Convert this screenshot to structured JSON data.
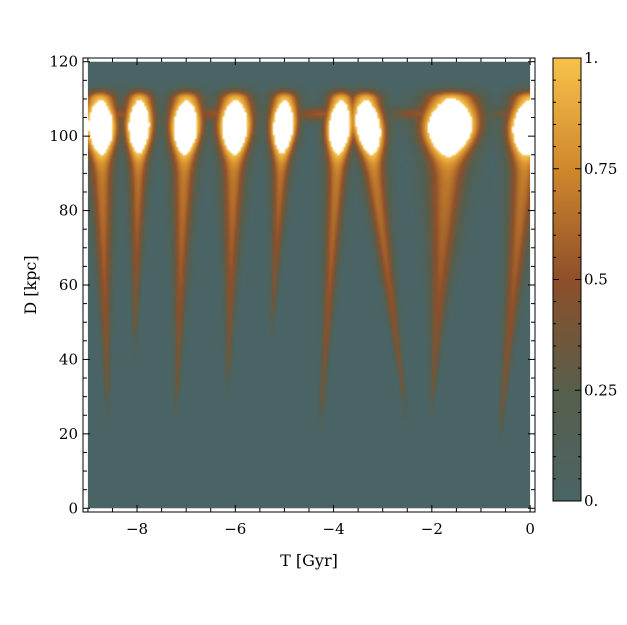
{
  "chart_data": {
    "type": "heatmap",
    "title": "",
    "xlabel": "T [Gyr]",
    "ylabel": "D [kpc]",
    "xlim": [
      -9.1,
      0.1
    ],
    "ylim": [
      -1,
      121
    ],
    "x_ticks": [
      {
        "value": -8,
        "label": "−8"
      },
      {
        "value": -6,
        "label": "−6"
      },
      {
        "value": -4,
        "label": "−4"
      },
      {
        "value": -2,
        "label": "−2"
      },
      {
        "value": 0,
        "label": "0"
      }
    ],
    "y_ticks": [
      {
        "value": 0,
        "label": "0"
      },
      {
        "value": 20,
        "label": "20"
      },
      {
        "value": 40,
        "label": "40"
      },
      {
        "value": 60,
        "label": "60"
      },
      {
        "value": 80,
        "label": "80"
      },
      {
        "value": 100,
        "label": "100"
      },
      {
        "value": 120,
        "label": "120"
      }
    ],
    "data_extent": {
      "x": [
        -9.0,
        0.0
      ],
      "y": [
        0,
        120
      ]
    },
    "colorbar": {
      "range": [
        0,
        1
      ],
      "ticks": [
        {
          "value": 0,
          "label": "0."
        },
        {
          "value": 0.25,
          "label": "0.25"
        },
        {
          "value": 0.5,
          "label": "0.5"
        },
        {
          "value": 0.75,
          "label": "0.75"
        },
        {
          "value": 1,
          "label": "1."
        }
      ],
      "colors": [
        {
          "value": 0.0,
          "color": "#4a6466"
        },
        {
          "value": 0.25,
          "color": "#575e4b"
        },
        {
          "value": 0.5,
          "color": "#8e4f2a"
        },
        {
          "value": 0.75,
          "color": "#d0882c"
        },
        {
          "value": 1.0,
          "color": "#f7c24a"
        }
      ],
      "saturated_color": "#ffffff"
    },
    "streams": [
      {
        "t_peak": -8.75,
        "t_tip": -8.6,
        "d_tip": 28,
        "amp": 1.3,
        "width_top": 0.28
      },
      {
        "t_peak": -7.95,
        "t_tip": -8.05,
        "d_tip": 45,
        "amp": 1.25,
        "width_top": 0.24
      },
      {
        "t_peak": -7.0,
        "t_tip": -7.2,
        "d_tip": 28,
        "amp": 1.25,
        "width_top": 0.28
      },
      {
        "t_peak": -6.0,
        "t_tip": -6.15,
        "d_tip": 35,
        "amp": 1.3,
        "width_top": 0.3
      },
      {
        "t_peak": -5.0,
        "t_tip": -5.25,
        "d_tip": 50,
        "amp": 1.2,
        "width_top": 0.24
      },
      {
        "t_peak": -3.85,
        "t_tip": -4.25,
        "d_tip": 25,
        "amp": 1.25,
        "width_top": 0.24
      },
      {
        "t_peak": -3.35,
        "t_tip": -2.55,
        "d_tip": 28,
        "amp": 1.3,
        "width_top": 0.28
      },
      {
        "t_peak": -1.6,
        "t_tip": -2.0,
        "d_tip": 28,
        "amp": 1.6,
        "width_top": 0.5
      },
      {
        "t_peak": 0.0,
        "t_tip": -0.6,
        "d_tip": 22,
        "amp": 1.4,
        "width_top": 0.35
      }
    ],
    "band": {
      "d": 106,
      "value": 0.55
    }
  }
}
